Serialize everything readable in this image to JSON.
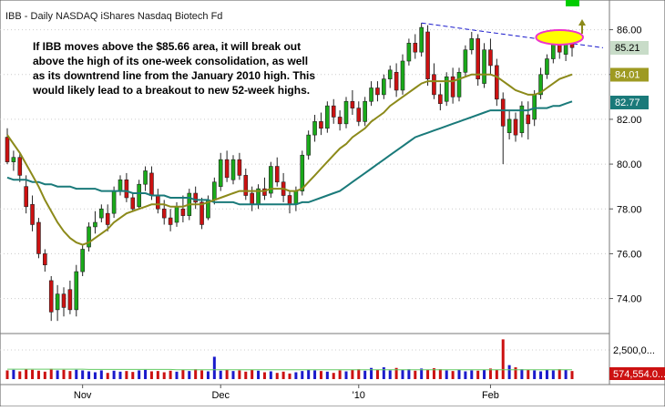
{
  "chart_data": {
    "type": "candlestick",
    "title": "IBB - Daily  NASDAQ  iShares Nasdaq Biotech Fd",
    "annotation_lines": [
      "If IBB moves above the $85.66 area, it will break out",
      "above the high of its one-week consolidation, as well",
      "as its downtrend line from the January 2010 high.  This",
      "would likely lead to a breakout to new 52-week highs."
    ],
    "ylim": [
      72.6,
      87.0
    ],
    "yticks": [
      "86.00",
      "84.00",
      "82.00",
      "80.00",
      "78.00",
      "76.00",
      "74.00"
    ],
    "price_tags": [
      {
        "label": "85.21",
        "value": 85.21,
        "bg": "#c8dcc8",
        "fg": "#000000"
      },
      {
        "label": "84.01",
        "value": 84.01,
        "bg": "#9e9a22",
        "fg": "#ffffff"
      },
      {
        "label": "82.77",
        "value": 82.77,
        "bg": "#1a7a7a",
        "fg": "#ffffff"
      }
    ],
    "xticks": [
      "Nov",
      "Dec",
      "'10",
      "Feb"
    ],
    "volume_labels": [
      "2,500,0...",
      "574,554.0..."
    ],
    "colors": {
      "up": "#1aaa1a",
      "down": "#cc1111",
      "ma_fast": "#8c8a1a",
      "ma_slow": "#1a7a7a",
      "trend": "#1a1acc",
      "highlight": "#ee33cc",
      "highlight_fill": "#ffff00",
      "arrow": "#8c8a1a",
      "volume_ma": "#66cc66"
    },
    "candles": [
      {
        "o": 81.2,
        "h": 81.6,
        "l": 80.0,
        "c": 80.1
      },
      {
        "o": 80.1,
        "h": 80.6,
        "l": 79.7,
        "c": 80.3
      },
      {
        "o": 80.3,
        "h": 80.5,
        "l": 79.2,
        "c": 79.5
      },
      {
        "o": 79.0,
        "h": 79.5,
        "l": 77.8,
        "c": 78.1
      },
      {
        "o": 78.2,
        "h": 78.6,
        "l": 77.0,
        "c": 77.3
      },
      {
        "o": 77.4,
        "h": 77.6,
        "l": 75.8,
        "c": 76.0
      },
      {
        "o": 76.0,
        "h": 76.2,
        "l": 75.2,
        "c": 75.5
      },
      {
        "o": 74.8,
        "h": 75.0,
        "l": 73.0,
        "c": 73.4
      },
      {
        "o": 73.5,
        "h": 74.6,
        "l": 73.0,
        "c": 74.2
      },
      {
        "o": 74.2,
        "h": 74.5,
        "l": 73.2,
        "c": 73.6
      },
      {
        "o": 74.4,
        "h": 74.8,
        "l": 73.3,
        "c": 73.5
      },
      {
        "o": 73.5,
        "h": 75.5,
        "l": 73.2,
        "c": 75.2
      },
      {
        "o": 75.2,
        "h": 76.4,
        "l": 75.0,
        "c": 76.2
      },
      {
        "o": 76.3,
        "h": 77.4,
        "l": 76.1,
        "c": 77.2
      },
      {
        "o": 77.2,
        "h": 77.9,
        "l": 76.9,
        "c": 77.4
      },
      {
        "o": 77.6,
        "h": 78.2,
        "l": 77.4,
        "c": 78.0
      },
      {
        "o": 77.8,
        "h": 78.2,
        "l": 77.0,
        "c": 77.3
      },
      {
        "o": 77.8,
        "h": 79.0,
        "l": 77.6,
        "c": 78.8
      },
      {
        "o": 78.8,
        "h": 79.5,
        "l": 78.6,
        "c": 79.3
      },
      {
        "o": 79.3,
        "h": 79.6,
        "l": 78.3,
        "c": 78.5
      },
      {
        "o": 78.5,
        "h": 78.7,
        "l": 77.9,
        "c": 78.0
      },
      {
        "o": 78.1,
        "h": 79.3,
        "l": 78.0,
        "c": 79.1
      },
      {
        "o": 79.1,
        "h": 79.9,
        "l": 78.8,
        "c": 79.7
      },
      {
        "o": 79.6,
        "h": 79.9,
        "l": 78.4,
        "c": 78.6
      },
      {
        "o": 78.6,
        "h": 78.9,
        "l": 77.8,
        "c": 78.0
      },
      {
        "o": 78.0,
        "h": 78.4,
        "l": 77.3,
        "c": 77.6
      },
      {
        "o": 77.6,
        "h": 78.0,
        "l": 77.0,
        "c": 77.3
      },
      {
        "o": 77.4,
        "h": 78.3,
        "l": 77.2,
        "c": 78.1
      },
      {
        "o": 78.0,
        "h": 78.6,
        "l": 77.4,
        "c": 77.7
      },
      {
        "o": 77.7,
        "h": 78.9,
        "l": 77.5,
        "c": 78.7
      },
      {
        "o": 78.7,
        "h": 79.0,
        "l": 78.0,
        "c": 78.3
      },
      {
        "o": 78.3,
        "h": 78.5,
        "l": 77.1,
        "c": 77.3
      },
      {
        "o": 77.6,
        "h": 78.6,
        "l": 77.5,
        "c": 78.4
      },
      {
        "o": 78.4,
        "h": 79.4,
        "l": 78.2,
        "c": 79.2
      },
      {
        "o": 79.0,
        "h": 80.5,
        "l": 78.8,
        "c": 80.2
      },
      {
        "o": 80.2,
        "h": 80.6,
        "l": 79.2,
        "c": 79.4
      },
      {
        "o": 79.3,
        "h": 80.4,
        "l": 79.1,
        "c": 80.2
      },
      {
        "o": 80.2,
        "h": 80.5,
        "l": 79.3,
        "c": 79.5
      },
      {
        "o": 79.5,
        "h": 79.8,
        "l": 78.4,
        "c": 78.6
      },
      {
        "o": 78.7,
        "h": 79.0,
        "l": 77.9,
        "c": 78.2
      },
      {
        "o": 78.2,
        "h": 79.1,
        "l": 78.0,
        "c": 78.9
      },
      {
        "o": 78.9,
        "h": 79.4,
        "l": 78.4,
        "c": 78.6
      },
      {
        "o": 78.7,
        "h": 80.1,
        "l": 78.5,
        "c": 79.9
      },
      {
        "o": 79.9,
        "h": 80.3,
        "l": 79.0,
        "c": 79.2
      },
      {
        "o": 79.2,
        "h": 79.6,
        "l": 78.3,
        "c": 78.6
      },
      {
        "o": 78.6,
        "h": 78.8,
        "l": 77.8,
        "c": 78.2
      },
      {
        "o": 78.2,
        "h": 79.0,
        "l": 77.9,
        "c": 78.8
      },
      {
        "o": 78.8,
        "h": 80.6,
        "l": 78.6,
        "c": 80.4
      },
      {
        "o": 80.4,
        "h": 81.5,
        "l": 80.2,
        "c": 81.3
      },
      {
        "o": 81.3,
        "h": 82.2,
        "l": 81.0,
        "c": 81.9
      },
      {
        "o": 81.9,
        "h": 82.3,
        "l": 81.3,
        "c": 81.6
      },
      {
        "o": 81.6,
        "h": 82.8,
        "l": 81.4,
        "c": 82.6
      },
      {
        "o": 82.6,
        "h": 82.9,
        "l": 81.8,
        "c": 82.1
      },
      {
        "o": 82.1,
        "h": 82.4,
        "l": 81.5,
        "c": 81.8
      },
      {
        "o": 81.8,
        "h": 83.0,
        "l": 81.6,
        "c": 82.8
      },
      {
        "o": 82.8,
        "h": 83.3,
        "l": 82.2,
        "c": 82.5
      },
      {
        "o": 82.5,
        "h": 82.8,
        "l": 81.7,
        "c": 81.9
      },
      {
        "o": 81.9,
        "h": 83.0,
        "l": 81.7,
        "c": 82.8
      },
      {
        "o": 82.8,
        "h": 83.7,
        "l": 82.6,
        "c": 83.4
      },
      {
        "o": 83.4,
        "h": 83.7,
        "l": 82.8,
        "c": 83.1
      },
      {
        "o": 83.1,
        "h": 84.0,
        "l": 82.9,
        "c": 83.8
      },
      {
        "o": 83.8,
        "h": 84.4,
        "l": 83.4,
        "c": 84.2
      },
      {
        "o": 84.1,
        "h": 84.5,
        "l": 83.0,
        "c": 83.3
      },
      {
        "o": 83.3,
        "h": 84.9,
        "l": 83.1,
        "c": 84.6
      },
      {
        "o": 84.6,
        "h": 85.6,
        "l": 84.4,
        "c": 85.4
      },
      {
        "o": 85.4,
        "h": 85.8,
        "l": 84.7,
        "c": 85.0
      },
      {
        "o": 85.0,
        "h": 86.3,
        "l": 84.8,
        "c": 86.1
      },
      {
        "o": 85.9,
        "h": 86.2,
        "l": 83.5,
        "c": 83.8
      },
      {
        "o": 84.0,
        "h": 84.5,
        "l": 82.9,
        "c": 83.1
      },
      {
        "o": 83.1,
        "h": 83.6,
        "l": 82.4,
        "c": 82.7
      },
      {
        "o": 82.8,
        "h": 84.1,
        "l": 82.6,
        "c": 83.9
      },
      {
        "o": 83.9,
        "h": 84.3,
        "l": 82.7,
        "c": 83.0
      },
      {
        "o": 83.0,
        "h": 84.3,
        "l": 82.8,
        "c": 84.1
      },
      {
        "o": 84.1,
        "h": 85.3,
        "l": 83.9,
        "c": 85.1
      },
      {
        "o": 85.1,
        "h": 85.9,
        "l": 84.9,
        "c": 85.6
      },
      {
        "o": 85.6,
        "h": 85.8,
        "l": 83.5,
        "c": 83.8
      },
      {
        "o": 83.6,
        "h": 85.4,
        "l": 83.4,
        "c": 85.1
      },
      {
        "o": 85.1,
        "h": 85.6,
        "l": 84.0,
        "c": 84.4
      },
      {
        "o": 84.4,
        "h": 84.7,
        "l": 82.6,
        "c": 82.9
      },
      {
        "o": 82.9,
        "h": 83.2,
        "l": 80.0,
        "c": 81.7
      },
      {
        "o": 81.4,
        "h": 82.4,
        "l": 81.1,
        "c": 82.0
      },
      {
        "o": 82.0,
        "h": 82.3,
        "l": 81.0,
        "c": 81.3
      },
      {
        "o": 81.4,
        "h": 82.8,
        "l": 81.2,
        "c": 82.6
      },
      {
        "o": 82.2,
        "h": 82.8,
        "l": 81.1,
        "c": 81.8
      },
      {
        "o": 82.0,
        "h": 83.3,
        "l": 81.7,
        "c": 83.1
      },
      {
        "o": 83.1,
        "h": 84.3,
        "l": 82.9,
        "c": 84.0
      },
      {
        "o": 84.0,
        "h": 84.9,
        "l": 83.8,
        "c": 84.7
      },
      {
        "o": 84.7,
        "h": 85.6,
        "l": 84.5,
        "c": 85.4
      },
      {
        "o": 85.4,
        "h": 85.7,
        "l": 84.7,
        "c": 85.0
      },
      {
        "o": 84.9,
        "h": 85.7,
        "l": 84.6,
        "c": 85.4
      },
      {
        "o": 85.4,
        "h": 85.6,
        "l": 84.8,
        "c": 85.2
      }
    ],
    "ma_fast": [
      81.3,
      80.9,
      80.5,
      80.0,
      79.5,
      79.0,
      78.4,
      77.9,
      77.4,
      77.0,
      76.7,
      76.5,
      76.4,
      76.5,
      76.7,
      76.9,
      77.1,
      77.4,
      77.6,
      77.8,
      77.9,
      78.0,
      78.1,
      78.2,
      78.2,
      78.2,
      78.1,
      78.1,
      78.1,
      78.2,
      78.2,
      78.2,
      78.3,
      78.4,
      78.5,
      78.6,
      78.7,
      78.8,
      78.8,
      78.8,
      78.8,
      78.8,
      78.9,
      78.9,
      78.9,
      78.8,
      78.8,
      78.9,
      79.2,
      79.5,
      79.8,
      80.1,
      80.4,
      80.7,
      80.9,
      81.2,
      81.4,
      81.6,
      81.9,
      82.1,
      82.3,
      82.6,
      82.8,
      83.0,
      83.2,
      83.4,
      83.6,
      83.7,
      83.7,
      83.7,
      83.7,
      83.7,
      83.8,
      83.9,
      84.0,
      84.0,
      84.0,
      84.0,
      83.9,
      83.7,
      83.5,
      83.3,
      83.2,
      83.1,
      83.1,
      83.2,
      83.4,
      83.6,
      83.8,
      83.9,
      84.0
    ],
    "ma_slow": [
      79.4,
      79.3,
      79.3,
      79.3,
      79.2,
      79.2,
      79.1,
      79.1,
      79.0,
      79.0,
      79.0,
      78.9,
      78.9,
      78.9,
      78.9,
      78.8,
      78.8,
      78.8,
      78.8,
      78.8,
      78.7,
      78.7,
      78.7,
      78.6,
      78.6,
      78.6,
      78.5,
      78.5,
      78.5,
      78.5,
      78.4,
      78.4,
      78.4,
      78.3,
      78.3,
      78.3,
      78.3,
      78.2,
      78.2,
      78.2,
      78.2,
      78.2,
      78.2,
      78.2,
      78.2,
      78.2,
      78.2,
      78.3,
      78.3,
      78.4,
      78.5,
      78.6,
      78.7,
      78.8,
      79.0,
      79.2,
      79.4,
      79.6,
      79.8,
      80.0,
      80.2,
      80.4,
      80.6,
      80.8,
      81.0,
      81.2,
      81.3,
      81.4,
      81.5,
      81.6,
      81.7,
      81.8,
      81.9,
      82.0,
      82.1,
      82.2,
      82.3,
      82.4,
      82.4,
      82.4,
      82.4,
      82.4,
      82.4,
      82.4,
      82.5,
      82.5,
      82.5,
      82.6,
      82.6,
      82.7,
      82.8
    ],
    "trendline": [
      {
        "index": 66,
        "value": 86.3
      },
      {
        "index": 90,
        "value": 85.52
      }
    ],
    "volume": [
      0.28,
      0.3,
      0.25,
      0.32,
      0.3,
      0.27,
      0.24,
      0.33,
      0.28,
      0.3,
      0.26,
      0.3,
      0.28,
      0.25,
      0.22,
      0.28,
      0.2,
      0.27,
      0.24,
      0.26,
      0.23,
      0.28,
      0.3,
      0.25,
      0.26,
      0.22,
      0.27,
      0.24,
      0.3,
      0.26,
      0.32,
      0.28,
      0.25,
      0.72,
      0.27,
      0.3,
      0.26,
      0.28,
      0.24,
      0.3,
      0.27,
      0.22,
      0.25,
      0.2,
      0.24,
      0.18,
      0.22,
      0.26,
      0.3,
      0.28,
      0.26,
      0.24,
      0.2,
      0.28,
      0.25,
      0.3,
      0.32,
      0.27,
      0.36,
      0.3,
      0.38,
      0.28,
      0.36,
      0.3,
      0.32,
      0.27,
      0.34,
      0.3,
      0.35,
      0.32,
      0.28,
      0.26,
      0.3,
      0.25,
      0.28,
      0.27,
      0.3,
      0.34,
      0.3,
      1.28,
      0.45,
      0.38,
      0.32,
      0.3,
      0.28,
      0.25,
      0.3,
      0.28,
      0.32,
      0.3,
      0.26
    ],
    "volume_ma": [
      0.32,
      0.32,
      0.32,
      0.32,
      0.32,
      0.32,
      0.32,
      0.32,
      0.32,
      0.32,
      0.32,
      0.32,
      0.32,
      0.31,
      0.31,
      0.31,
      0.31,
      0.31,
      0.31,
      0.31,
      0.31,
      0.31,
      0.31,
      0.31,
      0.31,
      0.31,
      0.31,
      0.3,
      0.3,
      0.3,
      0.3,
      0.3,
      0.3,
      0.3,
      0.3,
      0.3,
      0.3,
      0.3,
      0.3,
      0.3,
      0.3,
      0.3,
      0.3,
      0.3,
      0.3,
      0.3,
      0.3,
      0.3,
      0.3,
      0.3,
      0.3,
      0.3,
      0.3,
      0.3,
      0.3,
      0.3,
      0.3,
      0.3,
      0.3,
      0.3,
      0.3,
      0.3,
      0.3,
      0.3,
      0.3,
      0.3,
      0.3,
      0.3,
      0.3,
      0.3,
      0.3,
      0.3,
      0.3,
      0.3,
      0.3,
      0.3,
      0.3,
      0.3,
      0.3,
      0.3,
      0.3,
      0.3,
      0.3,
      0.3,
      0.3,
      0.3,
      0.3,
      0.3,
      0.3,
      0.3,
      0.3
    ],
    "volume_ylim": [
      0,
      1.35
    ],
    "xtick_index": [
      12,
      34,
      56,
      77
    ],
    "highlight_range": {
      "from_index": 86,
      "to_index": 90,
      "value": 85.66
    },
    "grid": true,
    "legend": "none"
  }
}
